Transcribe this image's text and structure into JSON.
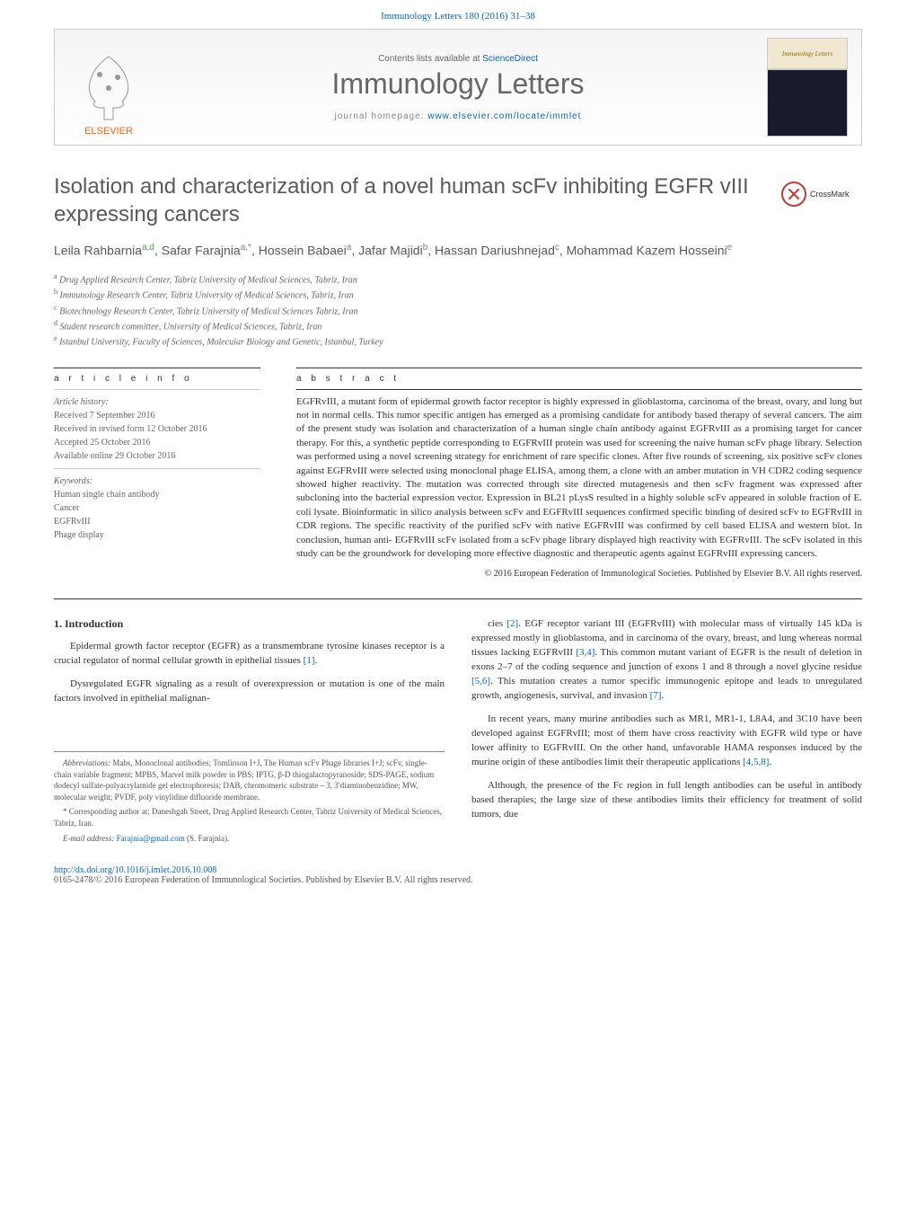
{
  "citation": "Immunology Letters 180 (2016) 31–38",
  "banner": {
    "elsevier": "ELSEVIER",
    "contents_line_prefix": "Contents lists available at ",
    "contents_link": "ScienceDirect",
    "journal": "Immunology Letters",
    "homepage_prefix": "journal homepage: ",
    "homepage_link": "www.elsevier.com/locate/immlet",
    "cover_text": "Immunology Letters"
  },
  "crossmark": "CrossMark",
  "title": "Isolation and characterization of a novel human scFv inhibiting EGFR vIII expressing cancers",
  "authors_html": "Leila Rahbarnia<sup>a,d</sup>, Safar Farajnia<sup>a,*</sup>, Hossein Babaei<sup>a</sup>, Jafar Majidi<sup>b</sup>, Hassan Dariushnejad<sup>c</sup>, Mohammad Kazem Hosseini<sup>e</sup>",
  "affiliations": [
    {
      "sup": "a",
      "text": "Drug Applied Research Center, Tabriz University of Medical Sciences, Tabriz, Iran"
    },
    {
      "sup": "b",
      "text": "Immunology Research Center, Tabriz University of Medical Sciences, Tabriz, Iran"
    },
    {
      "sup": "c",
      "text": "Biotechnology Research Center, Tabriz University of Medical Sciences Tabriz, Iran"
    },
    {
      "sup": "d",
      "text": "Student research committee, University of Medical Sciences, Tabriz, Iran"
    },
    {
      "sup": "e",
      "text": "Istanbul University, Faculty of Sciences, Molecular Biology and Genetic, Istanbul, Turkey"
    }
  ],
  "article_info": {
    "label": "a r t i c l e   i n f o",
    "history_label": "Article history:",
    "history": [
      "Received 7 September 2016",
      "Received in revised form 12 October 2016",
      "Accepted 25 October 2016",
      "Available online 29 October 2016"
    ],
    "keywords_label": "Keywords:",
    "keywords": [
      "Human single chain antibody",
      "Cancer",
      "EGFRvIII",
      "Phage display"
    ]
  },
  "abstract": {
    "label": "a b s t r a c t",
    "text": "EGFRvIII, a mutant form of epidermal growth factor receptor is highly expressed in glioblastoma, carcinoma of the breast, ovary, and lung but not in normal cells. This tumor specific antigen has emerged as a promising candidate for antibody based therapy of several cancers. The aim of the present study was isolation and characterization of a human single chain antibody against EGFRvIII as a promising target for cancer therapy. For this, a synthetic peptide corresponding to EGFRvIII protein was used for screening the naive human scFv phage library. Selection was performed using a novel screening strategy for enrichment of rare specific clones. After five rounds of screening, six positive scFv clones against EGFRvIII were selected using monoclonal phage ELISA, among them, a clone with an amber mutation in VH CDR2 coding sequence showed higher reactivity. The mutation was corrected through site directed mutagenesis and then scFv fragment was expressed after subcloning into the bacterial expression vector. Expression in BL21 pLysS resulted in a highly soluble scFv appeared in soluble fraction of E. coli lysate. Bioinformatic in silico analysis between scFv and EGFRvIII sequences confirmed specific binding of desired scFv to EGFRvIII in CDR regions. The specific reactivity of the purified scFv with native EGFRvIII was confirmed by cell based ELISA and western blot. In conclusion, human anti- EGFRvIII scFv isolated from a scFv phage library displayed high reactivity with EGFRvIII. The scFv isolated in this study can be the groundwork for developing more effective diagnostic and therapeutic agents against EGFRvIII expressing cancers.",
    "copyright": "© 2016 European Federation of Immunological Societies. Published by Elsevier B.V. All rights reserved."
  },
  "intro": {
    "heading": "1. Introduction",
    "paragraphs_left": [
      "Epidermal growth factor receptor (EGFR) as a transmembrane tyrosine kinases receptor is a crucial regulator of normal cellular growth in epithelial tissues [1].",
      "Dysregulated EGFR signaling as a result of overexpression or mutation is one of the main factors involved in epithelial malignan-"
    ],
    "paragraphs_right": [
      "cies [2]. EGF receptor variant III (EGFRvIII) with molecular mass of virtually 145 kDa is expressed mostly in glioblastoma, and in carcinoma of the ovary, breast, and lung whereas normal tissues lacking EGFRvIII [3,4]. This common mutant variant of EGFR is the result of deletion in exons 2–7 of the coding sequence and junction of exons 1 and 8 through a novel glycine residue [5,6]. This mutation creates a tumor specific immunogenic epitope and leads to unregulated growth, angiogenesis, survival, and invasion [7].",
      "In recent years, many murine antibodies such as MR1, MR1-1, L8A4, and 3C10 have been developed against EGFRvIII; most of them have cross reactivity with EGFR wild type or have lower affinity to EGFRvIII. On the other hand, unfavorable HAMA responses induced by the murine origin of these antibodies limit their therapeutic applications [4,5,8].",
      "Although, the presence of the Fc region in full length antibodies can be useful in antibody based therapies; the large size of these antibodies limits their efficiency for treatment of solid tumors, due"
    ]
  },
  "footnotes": {
    "abbrev_label": "Abbreviations:",
    "abbrev": " Mabs, Monoclonal antibodies; Tomlinson I+J, The Human scFv Phage libraries I+J; scFv, single-chain variable fragment; MPBS, Marvel milk powder in PBS; IPTG, β-D thiogalactopyranoside; SDS-PAGE, sodium dodecyl sulfate-polyacrylamide gel electrophoresis; DAB, chromomeric substrate – 3, 3′diaminobenzidine; MW, molecular weight; PVDF, poly vinylidine difluoride membrane.",
    "corr": "* Corresponding author at: Daneshgah Street, Drug Applied Research Center, Tabriz University of Medical Sciences, Tabriz, Iran.",
    "email_label": "E-mail address: ",
    "email": "Farajnia@gmail.com",
    "email_suffix": " (S. Farajnia)."
  },
  "footer": {
    "doi": "http://dx.doi.org/10.1016/j.imlet.2016.10.008",
    "copyright": "0165-2478/© 2016 European Federation of Immunological Societies. Published by Elsevier B.V. All rights reserved."
  },
  "colors": {
    "link": "#0066cc",
    "elsevier_orange": "#ff6600",
    "heading_gray": "#5a5a5a",
    "sup_green": "#5a9a5a",
    "cross_red": "#cc3333"
  }
}
